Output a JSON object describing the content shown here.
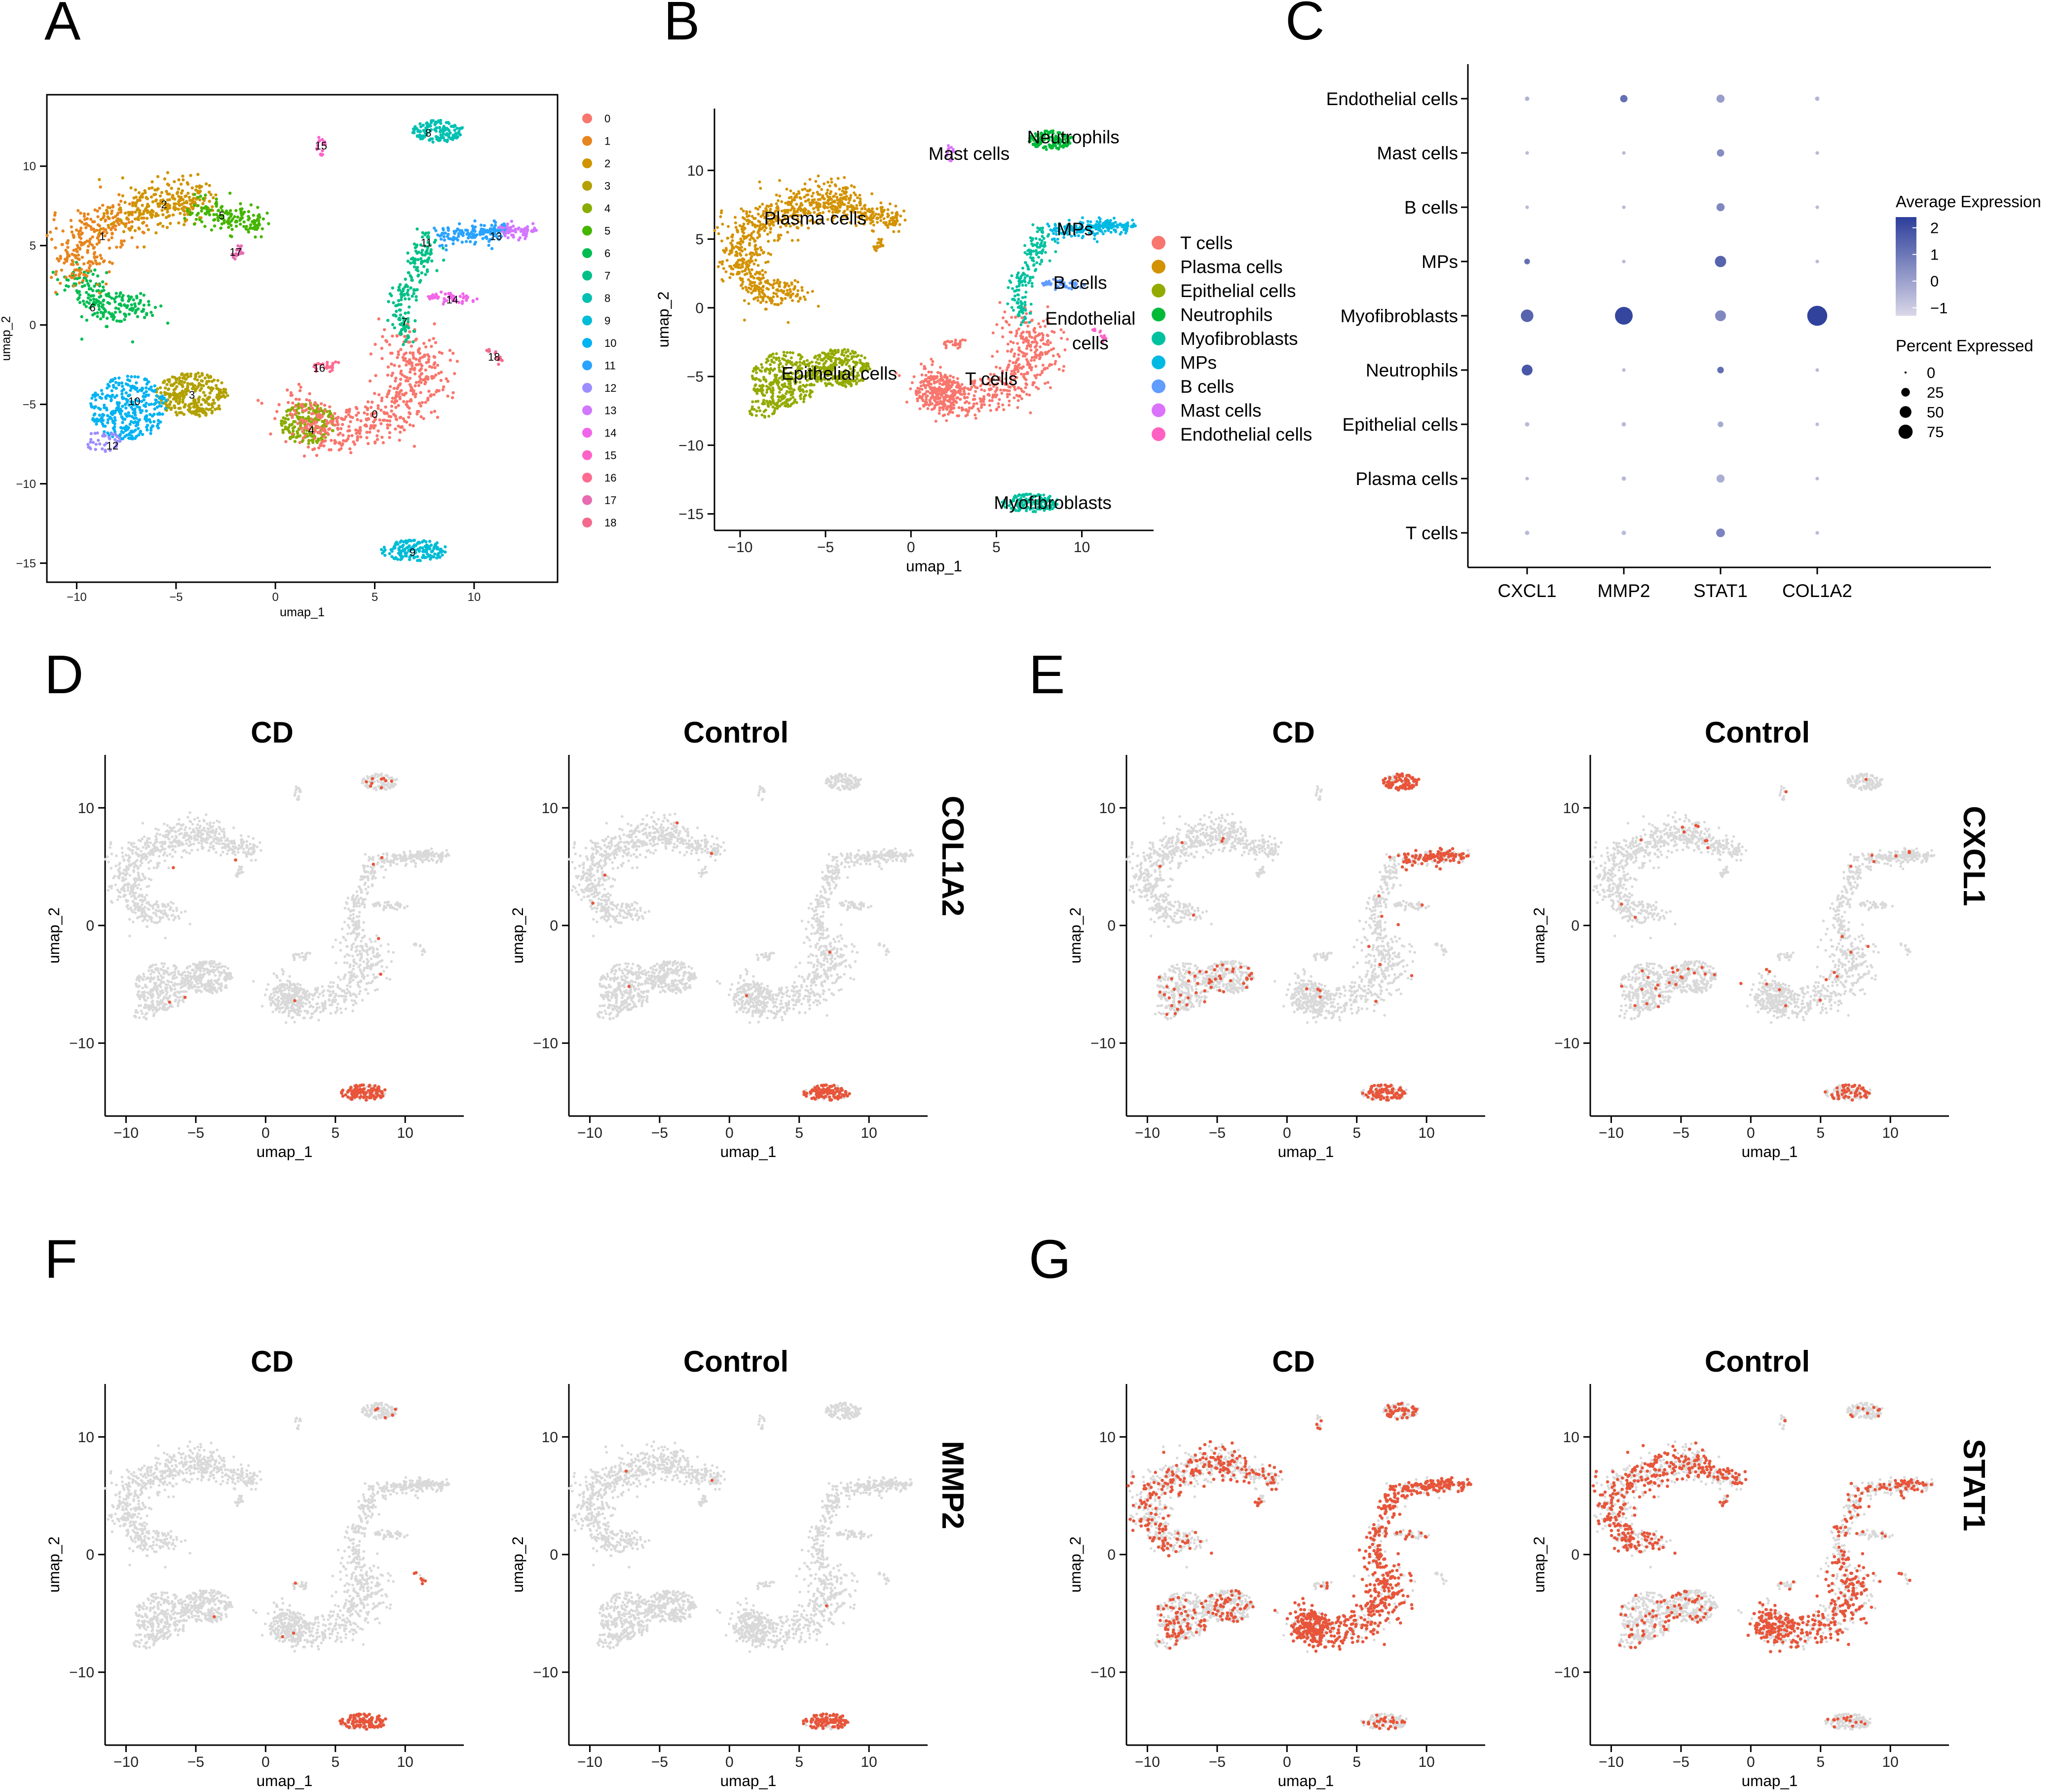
{
  "chart_data": {
    "panel_letters": [
      "A",
      "B",
      "C",
      "D",
      "E",
      "F",
      "G"
    ],
    "umap_axes": {
      "xlabel": "umap_1",
      "ylabel": "umap_2",
      "xticks": [
        -10,
        -5,
        0,
        5,
        10
      ],
      "yticks": [
        -15,
        -10,
        -5,
        0,
        5,
        10
      ],
      "small_yticks": [
        -10,
        0,
        10
      ],
      "xlim": [
        -11.5,
        14.2
      ],
      "ylim": [
        -16.2,
        14.5
      ]
    },
    "cluster_legend": {
      "labels": [
        "0",
        "1",
        "2",
        "3",
        "4",
        "5",
        "6",
        "7",
        "8",
        "9",
        "10",
        "11",
        "12",
        "13",
        "14",
        "15",
        "16",
        "17",
        "18"
      ],
      "colors": [
        "#F8766D",
        "#E7851E",
        "#D09400",
        "#B2A100",
        "#89AC00",
        "#45B500",
        "#00BC51",
        "#00C087",
        "#00C0B2",
        "#00BCD6",
        "#00B3F2",
        "#29A3FF",
        "#9C8DFF",
        "#D277FF",
        "#F166E8",
        "#FF61C7",
        "#FF6C91",
        "#E86BB0",
        "#F46A8C"
      ]
    },
    "cluster_centers": [
      {
        "label": "0",
        "x": 5.0,
        "y": -5.6
      },
      {
        "label": "1",
        "x": -8.7,
        "y": 5.6
      },
      {
        "label": "2",
        "x": -5.6,
        "y": 7.6
      },
      {
        "label": "3",
        "x": -4.2,
        "y": -4.4
      },
      {
        "label": "4",
        "x": 1.8,
        "y": -6.6
      },
      {
        "label": "5",
        "x": -2.7,
        "y": 6.9
      },
      {
        "label": "6",
        "x": -9.2,
        "y": 1.1
      },
      {
        "label": "7",
        "x": 6.5,
        "y": 0.2
      },
      {
        "label": "8",
        "x": 7.7,
        "y": 12.1
      },
      {
        "label": "9",
        "x": 6.9,
        "y": -14.3
      },
      {
        "label": "10",
        "x": -7.1,
        "y": -4.8
      },
      {
        "label": "11",
        "x": 7.6,
        "y": 5.2
      },
      {
        "label": "12",
        "x": -8.2,
        "y": -7.6
      },
      {
        "label": "13",
        "x": 11.1,
        "y": 5.6
      },
      {
        "label": "14",
        "x": 8.9,
        "y": 1.6
      },
      {
        "label": "15",
        "x": 2.3,
        "y": 11.3
      },
      {
        "label": "16",
        "x": 2.2,
        "y": -2.7
      },
      {
        "label": "17",
        "x": -2.0,
        "y": 4.6
      },
      {
        "label": "18",
        "x": 11.0,
        "y": -2.0
      }
    ],
    "celltype_legend": {
      "labels": [
        "T cells",
        "Plasma cells",
        "Epithelial cells",
        "Neutrophils",
        "Myofibroblasts",
        "MPs",
        "B cells",
        "Mast cells",
        "Endothelial cells"
      ],
      "colors": [
        "#F8766D",
        "#D39200",
        "#93AA00",
        "#00BA38",
        "#00C19F",
        "#00B9E3",
        "#619CFF",
        "#DB72FB",
        "#FF61C3"
      ]
    },
    "celltype_labels": [
      {
        "text": "Plasma cells",
        "x": -5.6,
        "y": 6.5
      },
      {
        "text": "Epithelial cells",
        "x": -4.2,
        "y": -4.8
      },
      {
        "text": "T cells",
        "x": 4.7,
        "y": -5.2
      },
      {
        "text": "Mast cells",
        "x": 3.4,
        "y": 11.2
      },
      {
        "text": "Neutrophils",
        "x": 9.5,
        "y": 12.4
      },
      {
        "text": "MPs",
        "x": 9.6,
        "y": 5.7
      },
      {
        "text": "B cells",
        "x": 9.9,
        "y": 1.8
      },
      {
        "text": "Endothelial",
        "x": 10.5,
        "y": -0.8
      },
      {
        "text": "cells",
        "x": 10.5,
        "y": -2.6
      },
      {
        "text": "Myofibroblasts",
        "x": 8.3,
        "y": -14.2
      }
    ],
    "dotplot": {
      "type": "dot",
      "genes": [
        "CXCL1",
        "MMP2",
        "STAT1",
        "COL1A2"
      ],
      "cell_types": [
        "Endothelial cells",
        "Mast cells",
        "B cells",
        "MPs",
        "Myofibroblasts",
        "Neutrophils",
        "Epithelial cells",
        "Plasma cells",
        "T cells"
      ],
      "avg_expression": [
        [
          -0.4,
          1.2,
          0.1,
          -0.5
        ],
        [
          -0.6,
          -0.6,
          0.5,
          -0.6
        ],
        [
          -0.6,
          -0.6,
          0.6,
          -0.6
        ],
        [
          1.2,
          -0.6,
          1.5,
          -0.6
        ],
        [
          1.5,
          2.2,
          0.6,
          2.3
        ],
        [
          1.8,
          -0.6,
          1.2,
          -0.6
        ],
        [
          -0.6,
          -0.6,
          -0.2,
          -0.6
        ],
        [
          -0.6,
          -0.6,
          -0.3,
          -0.6
        ],
        [
          -0.6,
          -0.6,
          0.7,
          -0.6
        ]
      ],
      "pct_expressed": [
        [
          2,
          8,
          10,
          2
        ],
        [
          1,
          1,
          8,
          1
        ],
        [
          1,
          1,
          10,
          1
        ],
        [
          4,
          1,
          22,
          1
        ],
        [
          28,
          60,
          20,
          78
        ],
        [
          20,
          1,
          6,
          1
        ],
        [
          2,
          2,
          4,
          1
        ],
        [
          1,
          2,
          10,
          1
        ],
        [
          2,
          2,
          12,
          1
        ]
      ],
      "color_legend": {
        "title": "Average Expression",
        "ticks": [
          2,
          1,
          0,
          -1
        ],
        "range": [
          -1.3,
          2.4
        ],
        "low_color": "#D9D7E8",
        "high_color": "#2C3E9A"
      },
      "size_legend": {
        "title": "Percent Expressed",
        "ticks": [
          0,
          25,
          50,
          75
        ]
      }
    },
    "feature_plots": [
      {
        "panel": "D",
        "gene": "COL1A2",
        "groups": [
          "CD",
          "Control"
        ]
      },
      {
        "panel": "E",
        "gene": "CXCL1",
        "groups": [
          "CD",
          "Control"
        ]
      },
      {
        "panel": "F",
        "gene": "MMP2",
        "groups": [
          "CD",
          "Control"
        ]
      },
      {
        "panel": "G",
        "gene": "STAT1",
        "groups": [
          "CD",
          "Control"
        ]
      }
    ],
    "expression_colors": {
      "background": "#D9D9D9",
      "expressed": "#E8553A"
    }
  }
}
